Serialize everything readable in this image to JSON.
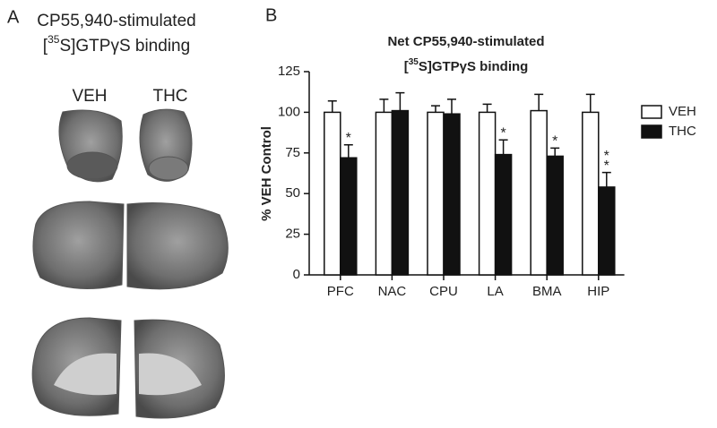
{
  "panel_a": {
    "label": "A",
    "title_line1": "CP55,940-stimulated",
    "title_line2": {
      "before": "[",
      "superscript": "35",
      "after": "S]GTPγS binding"
    },
    "columns": [
      "VEH",
      "THC"
    ]
  },
  "chart_data": {
    "type": "bar",
    "panel_label": "B",
    "title_line1": "Net CP55,940-stimulated",
    "title_line2": {
      "before": "[",
      "superscript": "35",
      "after": "S]GTPγS binding"
    },
    "y_label": "% VEH Control",
    "categories": [
      "PFC",
      "NAC",
      "CPU",
      "LA",
      "BMA",
      "HIP"
    ],
    "series": [
      {
        "name": "VEH",
        "color": "#ffffff",
        "values": [
          100,
          100,
          100,
          100,
          101,
          100
        ],
        "errors": [
          7,
          8,
          4,
          5,
          10,
          11
        ],
        "significance": [
          null,
          null,
          null,
          null,
          null,
          null
        ]
      },
      {
        "name": "THC",
        "color": "#111111",
        "values": [
          72,
          101,
          99,
          74,
          73,
          54
        ],
        "errors": [
          8,
          11,
          9,
          9,
          5,
          9
        ],
        "significance": [
          "*",
          null,
          null,
          "*",
          "*",
          "**"
        ]
      }
    ],
    "ylim": [
      0,
      125
    ],
    "yticks": [
      0,
      25,
      50,
      75,
      100,
      125
    ],
    "legend": "right"
  }
}
